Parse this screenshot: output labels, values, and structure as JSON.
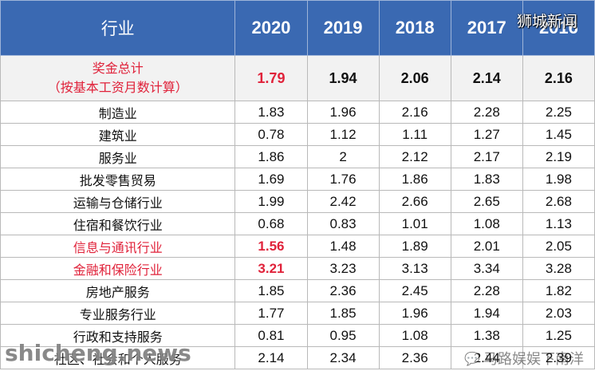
{
  "table": {
    "header": {
      "industry": "行业",
      "years": [
        "2020",
        "2019",
        "2018",
        "2017",
        "2016"
      ]
    },
    "total": {
      "label_line1": "奖金总计",
      "label_line2": "（按基本工资月数计算）",
      "values": [
        "1.79",
        "1.94",
        "2.06",
        "2.14",
        "2.16"
      ]
    },
    "rows": [
      {
        "industry": "制造业",
        "values": [
          "1.83",
          "1.96",
          "2.16",
          "2.28",
          "2.25"
        ]
      },
      {
        "industry": "建筑业",
        "values": [
          "0.78",
          "1.12",
          "1.11",
          "1.27",
          "1.45"
        ]
      },
      {
        "industry": "服务业",
        "values": [
          "1.86",
          "2",
          "2.12",
          "2.17",
          "2.19"
        ]
      },
      {
        "industry": "批发零售贸易",
        "values": [
          "1.69",
          "1.76",
          "1.86",
          "1.83",
          "1.98"
        ]
      },
      {
        "industry": "运输与仓储行业",
        "values": [
          "1.99",
          "2.42",
          "2.66",
          "2.65",
          "2.68"
        ]
      },
      {
        "industry": "住宿和餐饮行业",
        "values": [
          "0.68",
          "0.83",
          "1.01",
          "1.08",
          "1.13"
        ]
      },
      {
        "industry": "信息与通讯行业",
        "values": [
          "1.56",
          "1.48",
          "1.89",
          "2.01",
          "2.05"
        ],
        "highlight": true
      },
      {
        "industry": "金融和保险行业",
        "values": [
          "3.21",
          "3.23",
          "3.13",
          "3.34",
          "3.28"
        ],
        "highlight": true
      },
      {
        "industry": "房地产服务",
        "values": [
          "1.85",
          "2.36",
          "2.45",
          "2.28",
          "1.82"
        ]
      },
      {
        "industry": "专业服务行业",
        "values": [
          "1.77",
          "1.85",
          "1.96",
          "1.94",
          "2.03"
        ]
      },
      {
        "industry": "行政和支持服务",
        "values": [
          "0.81",
          "0.95",
          "1.08",
          "1.38",
          "1.25"
        ]
      },
      {
        "industry": "社区、社会和个人服务",
        "values": [
          "2.14",
          "2.34",
          "2.36",
          "2.44",
          "2.39"
        ]
      }
    ]
  },
  "watermarks": {
    "top_right": "狮城新闻",
    "bottom_left": "shicheng.news",
    "bottom_right": "马路娱娱下南洋"
  },
  "colors": {
    "header_bg": "#3a69b2",
    "highlight_red": "#e0223a",
    "total_row_bg": "#f2f2f2"
  }
}
